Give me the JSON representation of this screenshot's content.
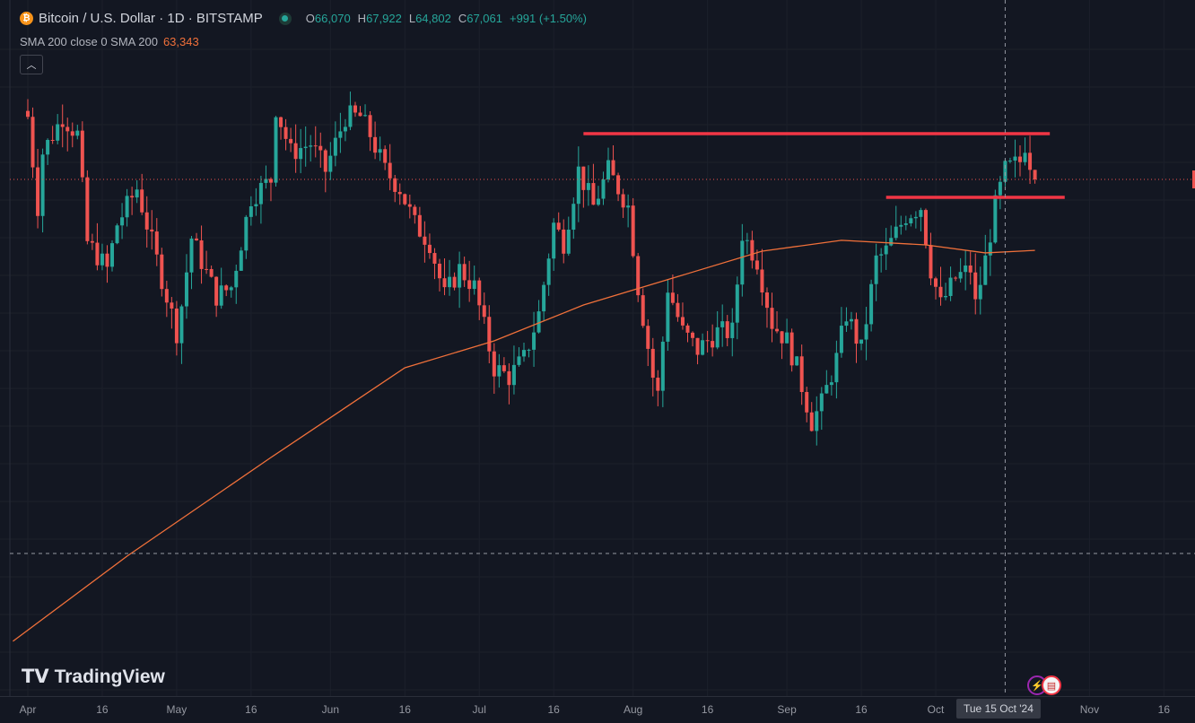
{
  "header": {
    "symbol": "Bitcoin / U.S. Dollar · 1D · BITSTAMP",
    "o_label": "O",
    "o": "66,070",
    "h_label": "H",
    "h": "67,922",
    "l_label": "L",
    "l": "64,802",
    "c_label": "C",
    "c": "67,061",
    "change": "+991 (+1.50%)"
  },
  "indicator": {
    "label": "SMA 200 close 0 SMA 200",
    "value": "63,343"
  },
  "collapse_icon": "chevron-up-icon",
  "logo": "TradingView",
  "crosshair_label": "Tue 15 Oct '24",
  "colors": {
    "up": "#26a69a",
    "down": "#ef5350",
    "sma": "#f0703a",
    "line": "#f23645",
    "bg": "#131722"
  },
  "chart_data": {
    "type": "candlestick",
    "x_unit": "days since 2024-04-01",
    "x_ticks": [
      {
        "day": 0,
        "label": "Apr"
      },
      {
        "day": 15,
        "label": "16"
      },
      {
        "day": 30,
        "label": "May"
      },
      {
        "day": 45,
        "label": "16"
      },
      {
        "day": 61,
        "label": "Jun"
      },
      {
        "day": 76,
        "label": "16"
      },
      {
        "day": 91,
        "label": "Jul"
      },
      {
        "day": 106,
        "label": "16"
      },
      {
        "day": 122,
        "label": "Aug"
      },
      {
        "day": 137,
        "label": "16"
      },
      {
        "day": 153,
        "label": "Sep"
      },
      {
        "day": 168,
        "label": "16"
      },
      {
        "day": 183,
        "label": "Oct"
      },
      {
        "day": 214,
        "label": "Nov"
      },
      {
        "day": 229,
        "label": "16"
      }
    ],
    "close_keypoints": [
      [
        0,
        70350
      ],
      [
        2,
        65650
      ],
      [
        3,
        68470
      ],
      [
        7,
        70350
      ],
      [
        10,
        69410
      ],
      [
        12,
        63770
      ],
      [
        16,
        62360
      ],
      [
        18,
        64710
      ],
      [
        22,
        66590
      ],
      [
        25,
        63770
      ],
      [
        30,
        59070
      ],
      [
        31,
        60480
      ],
      [
        33,
        64000
      ],
      [
        38,
        60950
      ],
      [
        41,
        61420
      ],
      [
        45,
        66120
      ],
      [
        49,
        67060
      ],
      [
        50,
        70820
      ],
      [
        53,
        68470
      ],
      [
        57,
        68940
      ],
      [
        60,
        67530
      ],
      [
        64,
        70350
      ],
      [
        67,
        70350
      ],
      [
        69,
        69410
      ],
      [
        72,
        67530
      ],
      [
        75,
        66590
      ],
      [
        78,
        64710
      ],
      [
        81,
        63770
      ],
      [
        84,
        60950
      ],
      [
        87,
        62360
      ],
      [
        90,
        61420
      ],
      [
        94,
        57190
      ],
      [
        97,
        56720
      ],
      [
        100,
        57660
      ],
      [
        103,
        60010
      ],
      [
        106,
        64710
      ],
      [
        108,
        63770
      ],
      [
        111,
        67530
      ],
      [
        114,
        65650
      ],
      [
        117,
        67530
      ],
      [
        121,
        65650
      ],
      [
        123,
        61420
      ],
      [
        126,
        56720
      ],
      [
        127,
        55780
      ],
      [
        129,
        61420
      ],
      [
        132,
        59070
      ],
      [
        135,
        58130
      ],
      [
        139,
        59070
      ],
      [
        142,
        59070
      ],
      [
        144,
        64240
      ],
      [
        147,
        62830
      ],
      [
        150,
        59540
      ],
      [
        153,
        58600
      ],
      [
        155,
        57190
      ],
      [
        158,
        54370
      ],
      [
        160,
        55310
      ],
      [
        163,
        57660
      ],
      [
        165,
        60010
      ],
      [
        168,
        58130
      ],
      [
        171,
        62830
      ],
      [
        173,
        63300
      ],
      [
        177,
        65180
      ],
      [
        180,
        65650
      ],
      [
        182,
        62360
      ],
      [
        184,
        60480
      ],
      [
        187,
        61890
      ],
      [
        190,
        62360
      ],
      [
        191,
        60480
      ],
      [
        193,
        62830
      ],
      [
        195,
        65650
      ],
      [
        197,
        67530
      ],
      [
        200,
        68000
      ],
      [
        201,
        68940
      ],
      [
        203,
        67061
      ]
    ],
    "sma200_keypoints": [
      [
        -3,
        42860
      ],
      [
        20,
        47320
      ],
      [
        49,
        52490
      ],
      [
        76,
        57190
      ],
      [
        94,
        58600
      ],
      [
        112,
        60480
      ],
      [
        130,
        61890
      ],
      [
        148,
        63300
      ],
      [
        164,
        63870
      ],
      [
        181,
        63630
      ],
      [
        193,
        63210
      ],
      [
        203,
        63343
      ]
    ],
    "horizontal_lines": [
      {
        "price": 69460,
        "from_day": 112,
        "to_day": 206
      },
      {
        "price": 66120,
        "from_day": 173,
        "to_day": 209
      }
    ],
    "last_price": 67061,
    "crosshair_day": 197
  }
}
